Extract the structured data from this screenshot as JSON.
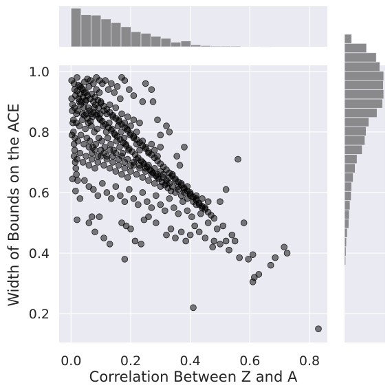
{
  "chart_data": {
    "type": "scatter",
    "xlabel": "Correlation Between Z and A",
    "ylabel": "Width of Bounds on the ACE",
    "xlim": [
      -0.04,
      0.86
    ],
    "ylim": [
      0.105,
      1.02
    ],
    "x_ticks": [
      "0.0",
      "0.2",
      "0.4",
      "0.6",
      "0.8"
    ],
    "y_ticks": [
      "0.2",
      "0.4",
      "0.6",
      "0.8",
      "1.0"
    ],
    "x_tick_values": [
      0.0,
      0.2,
      0.4,
      0.6,
      0.8
    ],
    "y_tick_values": [
      0.2,
      0.4,
      0.6,
      0.8,
      1.0
    ],
    "grid": true,
    "marginals": {
      "x_hist": {
        "type": "histogram",
        "bin_start": 0.0,
        "bin_width": 0.0335,
        "counts": [
          1.0,
          0.83,
          0.82,
          0.72,
          0.63,
          0.52,
          0.39,
          0.35,
          0.27,
          0.22,
          0.12,
          0.15,
          0.05,
          0.03,
          0.02,
          0.02,
          0.02,
          0.0,
          0.0,
          0.01,
          0.0,
          0.0,
          0.0,
          0.0,
          0.0
        ]
      },
      "y_hist": {
        "type": "histogram",
        "bin_start": 0.36,
        "bin_width": 0.0305,
        "counts": [
          0.03,
          0.04,
          0.05,
          0.07,
          0.11,
          0.12,
          0.14,
          0.17,
          0.18,
          0.22,
          0.27,
          0.32,
          0.45,
          0.52,
          0.55,
          0.62,
          0.83,
          0.97,
          1.0,
          0.99,
          1.0,
          0.9,
          0.81,
          0.56,
          0.18
        ]
      }
    },
    "points": [
      [
        0.002,
        0.97
      ],
      [
        0.01,
        0.96
      ],
      [
        0.02,
        0.98
      ],
      [
        0.03,
        0.95
      ],
      [
        0.04,
        0.94
      ],
      [
        0.05,
        0.93
      ],
      [
        0.06,
        0.95
      ],
      [
        0.015,
        0.92
      ],
      [
        0.025,
        0.91
      ],
      [
        0.035,
        0.9
      ],
      [
        0.045,
        0.93
      ],
      [
        0.055,
        0.92
      ],
      [
        0.065,
        0.91
      ],
      [
        0.075,
        0.9
      ],
      [
        0.085,
        0.94
      ],
      [
        0.095,
        0.93
      ],
      [
        0.005,
        0.89
      ],
      [
        0.012,
        0.88
      ],
      [
        0.022,
        0.87
      ],
      [
        0.032,
        0.89
      ],
      [
        0.042,
        0.88
      ],
      [
        0.052,
        0.86
      ],
      [
        0.062,
        0.87
      ],
      [
        0.072,
        0.85
      ],
      [
        0.082,
        0.89
      ],
      [
        0.092,
        0.88
      ],
      [
        0.1,
        0.9
      ],
      [
        0.11,
        0.87
      ],
      [
        0.12,
        0.86
      ],
      [
        0.13,
        0.89
      ],
      [
        0.14,
        0.85
      ],
      [
        0.15,
        0.88
      ],
      [
        0.16,
        0.84
      ],
      [
        0.17,
        0.86
      ],
      [
        0.18,
        0.83
      ],
      [
        0.19,
        0.85
      ],
      [
        0.2,
        0.82
      ],
      [
        0.21,
        0.84
      ],
      [
        0.22,
        0.8
      ],
      [
        0.23,
        0.83
      ],
      [
        0.008,
        0.84
      ],
      [
        0.018,
        0.83
      ],
      [
        0.028,
        0.82
      ],
      [
        0.038,
        0.84
      ],
      [
        0.048,
        0.81
      ],
      [
        0.058,
        0.83
      ],
      [
        0.068,
        0.82
      ],
      [
        0.078,
        0.8
      ],
      [
        0.088,
        0.81
      ],
      [
        0.098,
        0.84
      ],
      [
        0.108,
        0.82
      ],
      [
        0.118,
        0.8
      ],
      [
        0.128,
        0.83
      ],
      [
        0.138,
        0.81
      ],
      [
        0.148,
        0.79
      ],
      [
        0.158,
        0.82
      ],
      [
        0.168,
        0.8
      ],
      [
        0.178,
        0.78
      ],
      [
        0.188,
        0.81
      ],
      [
        0.198,
        0.79
      ],
      [
        0.003,
        0.79
      ],
      [
        0.013,
        0.78
      ],
      [
        0.023,
        0.77
      ],
      [
        0.033,
        0.79
      ],
      [
        0.043,
        0.76
      ],
      [
        0.053,
        0.78
      ],
      [
        0.063,
        0.77
      ],
      [
        0.073,
        0.75
      ],
      [
        0.083,
        0.76
      ],
      [
        0.093,
        0.78
      ],
      [
        0.103,
        0.77
      ],
      [
        0.113,
        0.75
      ],
      [
        0.123,
        0.78
      ],
      [
        0.133,
        0.76
      ],
      [
        0.143,
        0.74
      ],
      [
        0.153,
        0.77
      ],
      [
        0.163,
        0.75
      ],
      [
        0.173,
        0.73
      ],
      [
        0.183,
        0.76
      ],
      [
        0.193,
        0.74
      ],
      [
        0.21,
        0.78
      ],
      [
        0.22,
        0.76
      ],
      [
        0.23,
        0.74
      ],
      [
        0.24,
        0.77
      ],
      [
        0.25,
        0.75
      ],
      [
        0.26,
        0.73
      ],
      [
        0.27,
        0.76
      ],
      [
        0.28,
        0.74
      ],
      [
        0.29,
        0.72
      ],
      [
        0.3,
        0.75
      ],
      [
        0.01,
        0.72
      ],
      [
        0.02,
        0.71
      ],
      [
        0.03,
        0.73
      ],
      [
        0.04,
        0.7
      ],
      [
        0.05,
        0.72
      ],
      [
        0.06,
        0.69
      ],
      [
        0.07,
        0.71
      ],
      [
        0.08,
        0.68
      ],
      [
        0.09,
        0.7
      ],
      [
        0.1,
        0.72
      ],
      [
        0.11,
        0.69
      ],
      [
        0.12,
        0.71
      ],
      [
        0.13,
        0.68
      ],
      [
        0.14,
        0.7
      ],
      [
        0.15,
        0.67
      ],
      [
        0.16,
        0.69
      ],
      [
        0.17,
        0.66
      ],
      [
        0.18,
        0.68
      ],
      [
        0.19,
        0.65
      ],
      [
        0.2,
        0.67
      ],
      [
        0.21,
        0.69
      ],
      [
        0.22,
        0.66
      ],
      [
        0.23,
        0.68
      ],
      [
        0.24,
        0.65
      ],
      [
        0.25,
        0.67
      ],
      [
        0.26,
        0.64
      ],
      [
        0.27,
        0.66
      ],
      [
        0.28,
        0.63
      ],
      [
        0.29,
        0.65
      ],
      [
        0.3,
        0.62
      ],
      [
        0.31,
        0.66
      ],
      [
        0.32,
        0.63
      ],
      [
        0.33,
        0.65
      ],
      [
        0.34,
        0.62
      ],
      [
        0.35,
        0.64
      ],
      [
        0.36,
        0.61
      ],
      [
        0.37,
        0.63
      ],
      [
        0.38,
        0.6
      ],
      [
        0.39,
        0.62
      ],
      [
        0.4,
        0.59
      ],
      [
        0.005,
        0.645
      ],
      [
        0.015,
        0.605
      ],
      [
        0.03,
        0.58
      ],
      [
        0.045,
        0.64
      ],
      [
        0.06,
        0.62
      ],
      [
        0.075,
        0.61
      ],
      [
        0.09,
        0.59
      ],
      [
        0.105,
        0.63
      ],
      [
        0.12,
        0.6
      ],
      [
        0.135,
        0.58
      ],
      [
        0.15,
        0.62
      ],
      [
        0.165,
        0.59
      ],
      [
        0.18,
        0.57
      ],
      [
        0.195,
        0.61
      ],
      [
        0.21,
        0.58
      ],
      [
        0.225,
        0.56
      ],
      [
        0.24,
        0.6
      ],
      [
        0.255,
        0.57
      ],
      [
        0.27,
        0.55
      ],
      [
        0.285,
        0.59
      ],
      [
        0.3,
        0.56
      ],
      [
        0.315,
        0.54
      ],
      [
        0.33,
        0.58
      ],
      [
        0.345,
        0.55
      ],
      [
        0.36,
        0.53
      ],
      [
        0.375,
        0.57
      ],
      [
        0.39,
        0.54
      ],
      [
        0.405,
        0.52
      ],
      [
        0.42,
        0.56
      ],
      [
        0.435,
        0.53
      ],
      [
        0.02,
        0.51
      ],
      [
        0.06,
        0.5
      ],
      [
        0.07,
        0.52
      ],
      [
        0.08,
        0.47
      ],
      [
        0.095,
        0.52
      ],
      [
        0.11,
        0.45
      ],
      [
        0.13,
        0.43
      ],
      [
        0.17,
        0.5
      ],
      [
        0.185,
        0.49
      ],
      [
        0.2,
        0.48
      ],
      [
        0.215,
        0.44
      ],
      [
        0.235,
        0.43
      ],
      [
        0.245,
        0.51
      ],
      [
        0.26,
        0.52
      ],
      [
        0.285,
        0.5
      ],
      [
        0.32,
        0.46
      ],
      [
        0.335,
        0.48
      ],
      [
        0.35,
        0.45
      ],
      [
        0.37,
        0.47
      ],
      [
        0.385,
        0.44
      ],
      [
        0.4,
        0.46
      ],
      [
        0.415,
        0.49
      ],
      [
        0.43,
        0.47
      ],
      [
        0.45,
        0.45
      ],
      [
        0.46,
        0.5
      ],
      [
        0.475,
        0.42
      ],
      [
        0.48,
        0.44
      ],
      [
        0.49,
        0.48
      ],
      [
        0.5,
        0.43
      ],
      [
        0.51,
        0.49
      ],
      [
        0.52,
        0.44
      ],
      [
        0.53,
        0.41
      ],
      [
        0.54,
        0.46
      ],
      [
        0.55,
        0.44
      ],
      [
        0.56,
        0.71
      ],
      [
        0.565,
        0.385
      ],
      [
        0.58,
        0.5
      ],
      [
        0.595,
        0.38
      ],
      [
        0.61,
        0.395
      ],
      [
        0.61,
        0.305
      ],
      [
        0.615,
        0.32
      ],
      [
        0.63,
        0.33
      ],
      [
        0.67,
        0.36
      ],
      [
        0.685,
        0.385
      ],
      [
        0.715,
        0.42
      ],
      [
        0.725,
        0.4
      ],
      [
        0.18,
        0.38
      ],
      [
        0.41,
        0.22
      ],
      [
        0.83,
        0.15
      ],
      [
        0.5,
        0.57
      ],
      [
        0.52,
        0.61
      ],
      [
        0.46,
        0.57
      ],
      [
        0.44,
        0.55
      ],
      [
        0.42,
        0.58
      ],
      [
        0.365,
        0.69
      ],
      [
        0.38,
        0.75
      ],
      [
        0.355,
        0.72
      ],
      [
        0.33,
        0.8
      ],
      [
        0.32,
        0.82
      ],
      [
        0.3,
        0.79
      ],
      [
        0.29,
        0.84
      ],
      [
        0.275,
        0.9
      ],
      [
        0.27,
        0.94
      ],
      [
        0.25,
        0.96
      ],
      [
        0.24,
        0.9
      ],
      [
        0.21,
        0.92
      ],
      [
        0.195,
        0.94
      ],
      [
        0.18,
        0.97
      ],
      [
        0.17,
        0.98
      ],
      [
        0.165,
        0.91
      ],
      [
        0.155,
        0.95
      ],
      [
        0.145,
        0.93
      ],
      [
        0.135,
        0.96
      ],
      [
        0.125,
        0.94
      ],
      [
        0.115,
        0.97
      ],
      [
        0.105,
        0.96
      ],
      [
        0.095,
        0.97
      ],
      [
        0.085,
        0.98
      ],
      [
        0.075,
        0.96
      ],
      [
        0.065,
        0.97
      ],
      [
        0.002,
        0.91
      ],
      [
        0.004,
        0.87
      ],
      [
        0.006,
        0.83
      ],
      [
        0.008,
        0.8
      ],
      [
        0.01,
        0.76
      ],
      [
        0.012,
        0.74
      ],
      [
        0.014,
        0.7
      ],
      [
        0.016,
        0.68
      ],
      [
        0.018,
        0.66
      ],
      [
        0.022,
        0.64
      ],
      [
        0.025,
        0.955
      ],
      [
        0.035,
        0.945
      ],
      [
        0.045,
        0.965
      ],
      [
        0.055,
        0.975
      ],
      [
        0.05,
        0.905
      ],
      [
        0.04,
        0.915
      ],
      [
        0.03,
        0.925
      ],
      [
        0.02,
        0.935
      ],
      [
        0.07,
        0.925
      ],
      [
        0.08,
        0.915
      ],
      [
        0.09,
        0.905
      ],
      [
        0.1,
        0.895
      ],
      [
        0.11,
        0.885
      ],
      [
        0.12,
        0.875
      ],
      [
        0.13,
        0.865
      ],
      [
        0.14,
        0.855
      ],
      [
        0.15,
        0.845
      ],
      [
        0.16,
        0.835
      ],
      [
        0.17,
        0.825
      ],
      [
        0.18,
        0.815
      ],
      [
        0.19,
        0.805
      ],
      [
        0.2,
        0.795
      ],
      [
        0.21,
        0.785
      ],
      [
        0.22,
        0.775
      ],
      [
        0.23,
        0.765
      ],
      [
        0.24,
        0.755
      ],
      [
        0.25,
        0.745
      ],
      [
        0.26,
        0.735
      ],
      [
        0.27,
        0.725
      ],
      [
        0.28,
        0.715
      ],
      [
        0.29,
        0.705
      ],
      [
        0.3,
        0.695
      ],
      [
        0.31,
        0.685
      ],
      [
        0.32,
        0.675
      ],
      [
        0.33,
        0.665
      ],
      [
        0.34,
        0.655
      ],
      [
        0.35,
        0.645
      ],
      [
        0.36,
        0.635
      ],
      [
        0.37,
        0.625
      ],
      [
        0.38,
        0.615
      ],
      [
        0.39,
        0.605
      ],
      [
        0.4,
        0.595
      ],
      [
        0.41,
        0.585
      ],
      [
        0.42,
        0.575
      ],
      [
        0.43,
        0.565
      ],
      [
        0.44,
        0.555
      ],
      [
        0.45,
        0.545
      ],
      [
        0.46,
        0.535
      ],
      [
        0.47,
        0.525
      ],
      [
        0.48,
        0.515
      ],
      [
        0.045,
        0.855
      ],
      [
        0.055,
        0.845
      ],
      [
        0.065,
        0.835
      ],
      [
        0.075,
        0.865
      ],
      [
        0.085,
        0.855
      ],
      [
        0.095,
        0.845
      ],
      [
        0.105,
        0.835
      ],
      [
        0.115,
        0.825
      ],
      [
        0.125,
        0.815
      ],
      [
        0.135,
        0.805
      ],
      [
        0.145,
        0.795
      ],
      [
        0.155,
        0.785
      ],
      [
        0.165,
        0.775
      ],
      [
        0.175,
        0.765
      ],
      [
        0.185,
        0.755
      ],
      [
        0.195,
        0.745
      ],
      [
        0.205,
        0.735
      ],
      [
        0.215,
        0.725
      ],
      [
        0.225,
        0.715
      ],
      [
        0.235,
        0.705
      ],
      [
        0.245,
        0.695
      ],
      [
        0.255,
        0.685
      ],
      [
        0.265,
        0.675
      ],
      [
        0.275,
        0.665
      ],
      [
        0.285,
        0.655
      ],
      [
        0.295,
        0.645
      ],
      [
        0.305,
        0.635
      ],
      [
        0.315,
        0.625
      ],
      [
        0.325,
        0.615
      ],
      [
        0.335,
        0.605
      ],
      [
        0.012,
        0.94
      ],
      [
        0.018,
        0.86
      ],
      [
        0.028,
        0.9
      ],
      [
        0.038,
        0.86
      ],
      [
        0.048,
        0.9
      ],
      [
        0.058,
        0.88
      ],
      [
        0.068,
        0.86
      ],
      [
        0.078,
        0.88
      ],
      [
        0.088,
        0.86
      ],
      [
        0.098,
        0.86
      ],
      [
        0.06,
        0.75
      ],
      [
        0.07,
        0.73
      ],
      [
        0.08,
        0.74
      ],
      [
        0.09,
        0.72
      ],
      [
        0.1,
        0.74
      ],
      [
        0.11,
        0.73
      ],
      [
        0.12,
        0.72
      ],
      [
        0.13,
        0.74
      ],
      [
        0.14,
        0.72
      ],
      [
        0.15,
        0.73
      ],
      [
        0.16,
        0.71
      ],
      [
        0.17,
        0.72
      ],
      [
        0.18,
        0.7
      ],
      [
        0.19,
        0.71
      ],
      [
        0.2,
        0.69
      ],
      [
        0.21,
        0.7
      ],
      [
        0.22,
        0.71
      ],
      [
        0.23,
        0.69
      ],
      [
        0.24,
        0.7
      ],
      [
        0.25,
        0.68
      ],
      [
        0.26,
        0.69
      ],
      [
        0.27,
        0.67
      ],
      [
        0.28,
        0.68
      ],
      [
        0.29,
        0.66
      ],
      [
        0.3,
        0.67
      ],
      [
        0.31,
        0.65
      ],
      [
        0.32,
        0.64
      ],
      [
        0.33,
        0.63
      ],
      [
        0.34,
        0.66
      ],
      [
        0.35,
        0.6
      ],
      [
        0.36,
        0.62
      ],
      [
        0.37,
        0.59
      ],
      [
        0.38,
        0.61
      ],
      [
        0.39,
        0.58
      ],
      [
        0.4,
        0.6
      ],
      [
        0.41,
        0.57
      ],
      [
        0.42,
        0.59
      ],
      [
        0.43,
        0.56
      ],
      [
        0.44,
        0.58
      ],
      [
        0.45,
        0.55
      ]
    ]
  }
}
